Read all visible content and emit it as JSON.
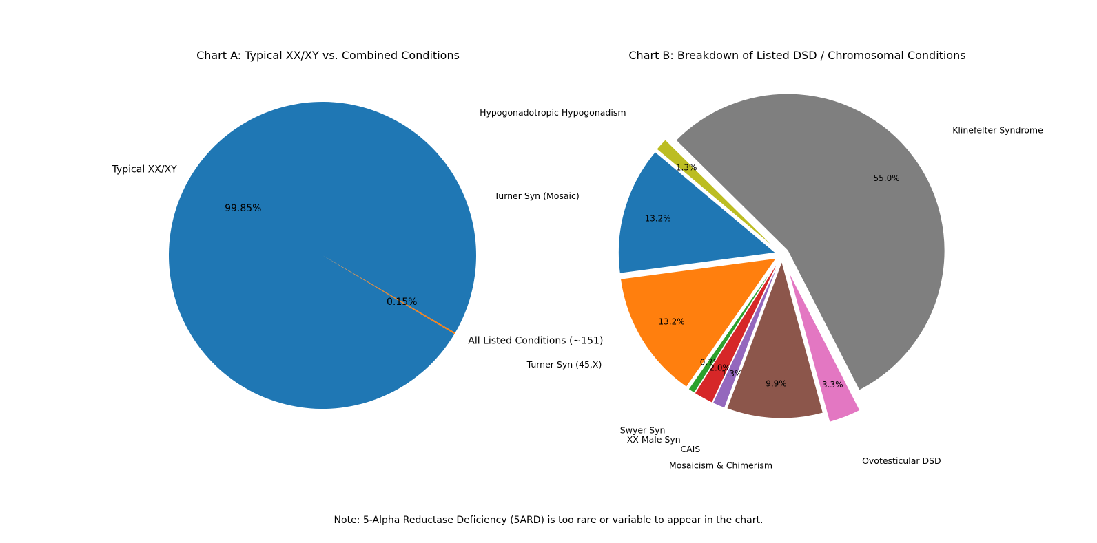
{
  "chart_data": [
    {
      "type": "pie",
      "title": "Chart A: Typical XX/XY vs. Combined Conditions",
      "slices": [
        {
          "label": "Typical XX/XY",
          "value": 99.85,
          "percent_label": "99.85%",
          "color": "#1f77b4"
        },
        {
          "label": "All Listed Conditions (~151)",
          "value": 0.15,
          "percent_label": "0.15%",
          "color": "#ff7f0e"
        }
      ]
    },
    {
      "type": "pie",
      "title": "Chart B: Breakdown of Listed DSD / Chromosomal Conditions",
      "slices": [
        {
          "label": "Turner Syn (Mosaic)",
          "value": 13.2,
          "percent_label": "13.2%",
          "color": "#1f77b4"
        },
        {
          "label": "Turner Syn (45,X)",
          "value": 13.2,
          "percent_label": "13.2%",
          "color": "#ff7f0e"
        },
        {
          "label": "Swyer Syn",
          "value": 0.7,
          "percent_label": "0.7%",
          "color": "#2ca02c"
        },
        {
          "label": "XX Male Syn",
          "value": 2.0,
          "percent_label": "2.0%",
          "color": "#d62728"
        },
        {
          "label": "CAIS",
          "value": 1.3,
          "percent_label": "1.3%",
          "color": "#9467bd"
        },
        {
          "label": "Mosaicism & Chimerism",
          "value": 9.9,
          "percent_label": "9.9%",
          "color": "#8c564b"
        },
        {
          "label": "Ovotesticular DSD",
          "value": 3.3,
          "percent_label": "3.3%",
          "color": "#e377c2"
        },
        {
          "label": "Klinefelter Syndrome",
          "value": 55.0,
          "percent_label": "55.0%",
          "color": "#7f7f7f"
        },
        {
          "label": "Hypogonadotropic Hypogonadism",
          "value": 1.3,
          "percent_label": "1.3%",
          "color": "#bcbd22"
        }
      ]
    }
  ],
  "note": "Note: 5-Alpha Reductase Deficiency (5ARD) is too rare or variable to appear in the chart."
}
